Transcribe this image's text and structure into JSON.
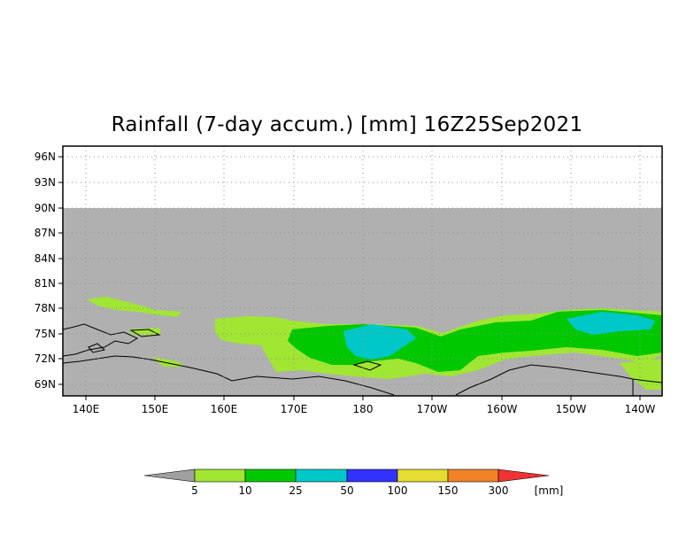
{
  "title": "Rainfall (7-day accum.) [mm] 16Z25Sep2021",
  "map": {
    "lat_labels": [
      "96N",
      "93N",
      "90N",
      "87N",
      "84N",
      "81N",
      "78N",
      "75N",
      "72N",
      "69N"
    ],
    "lon_labels": [
      "140E",
      "150E",
      "160E",
      "170E",
      "180",
      "170W",
      "160W",
      "150W",
      "140W"
    ],
    "no_data_color": "#b0b0b0",
    "coastline_color": "#000000"
  },
  "legend": {
    "ticks": [
      "5",
      "10",
      "25",
      "50",
      "100",
      "150",
      "300"
    ],
    "unit": "[mm]",
    "colors": [
      "#a0a0a0",
      "#a0e632",
      "#00c800",
      "#00c8c8",
      "#3232ff",
      "#e6dc32",
      "#f08228",
      "#f03232"
    ]
  }
}
